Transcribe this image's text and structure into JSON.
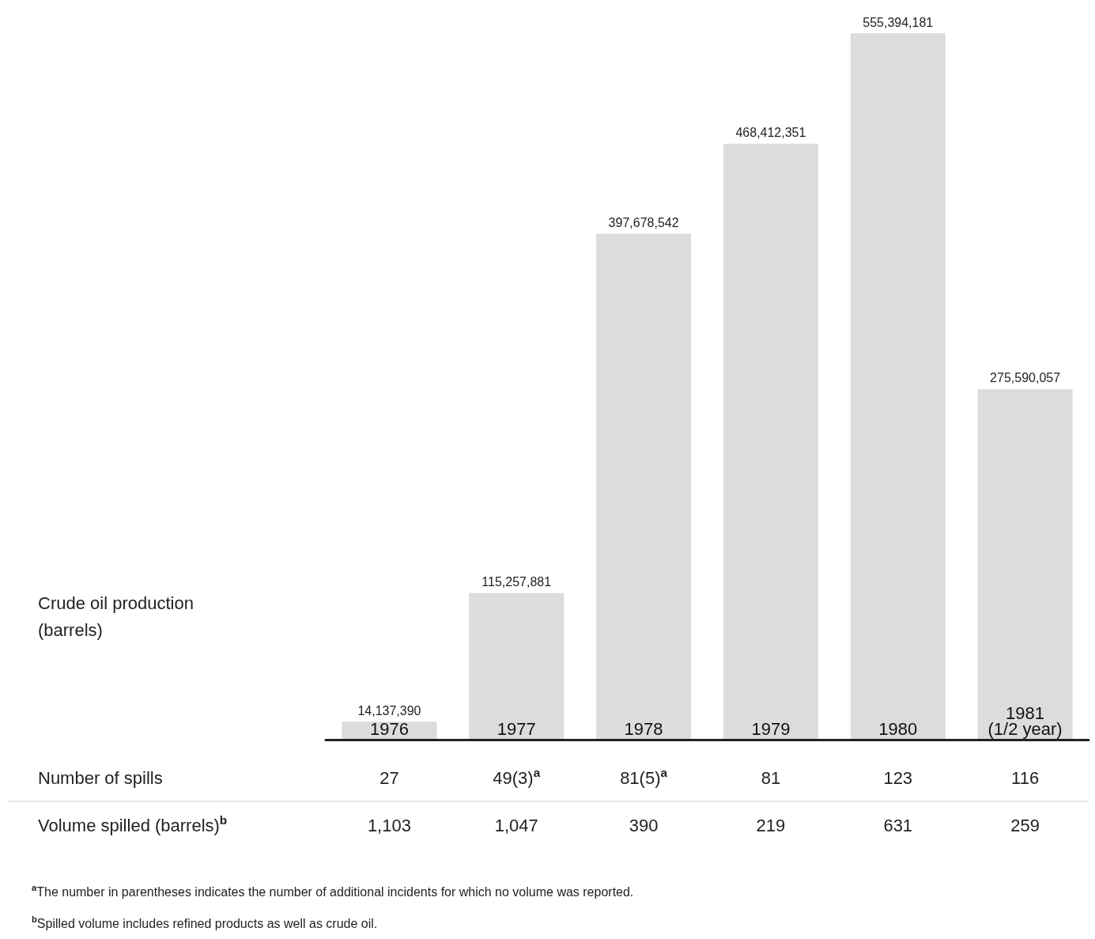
{
  "chart_data": {
    "type": "bar",
    "categories": [
      "1976",
      "1977",
      "1978",
      "1979",
      "1980",
      "1981\n(1/2 year)"
    ],
    "values": [
      14137390,
      115257881,
      397678542,
      468412351,
      555394181,
      275590057
    ],
    "value_labels": [
      "14,137,390",
      "115,257,881",
      "397,678,542",
      "468,412,351",
      "555,394,181",
      "275,590,057"
    ],
    "color": "#dcdcdc",
    "annotations": [
      "Crude oil production\n(barrels)",
      "Number of spills",
      "27",
      "49(3)$^{a}$",
      "81(5)$^{a}$",
      "81",
      "123",
      "116",
      "Volume spilled (barrels)$^{b}$",
      "1,103",
      "1,047",
      "390",
      "219",
      "631",
      "259",
      "$^{a}$The number in parentheses indicates the number of additional incidents for which no volume was reported.",
      "$^{b}$Spilled volume includes refined products as well as crude oil."
    ]
  }
}
